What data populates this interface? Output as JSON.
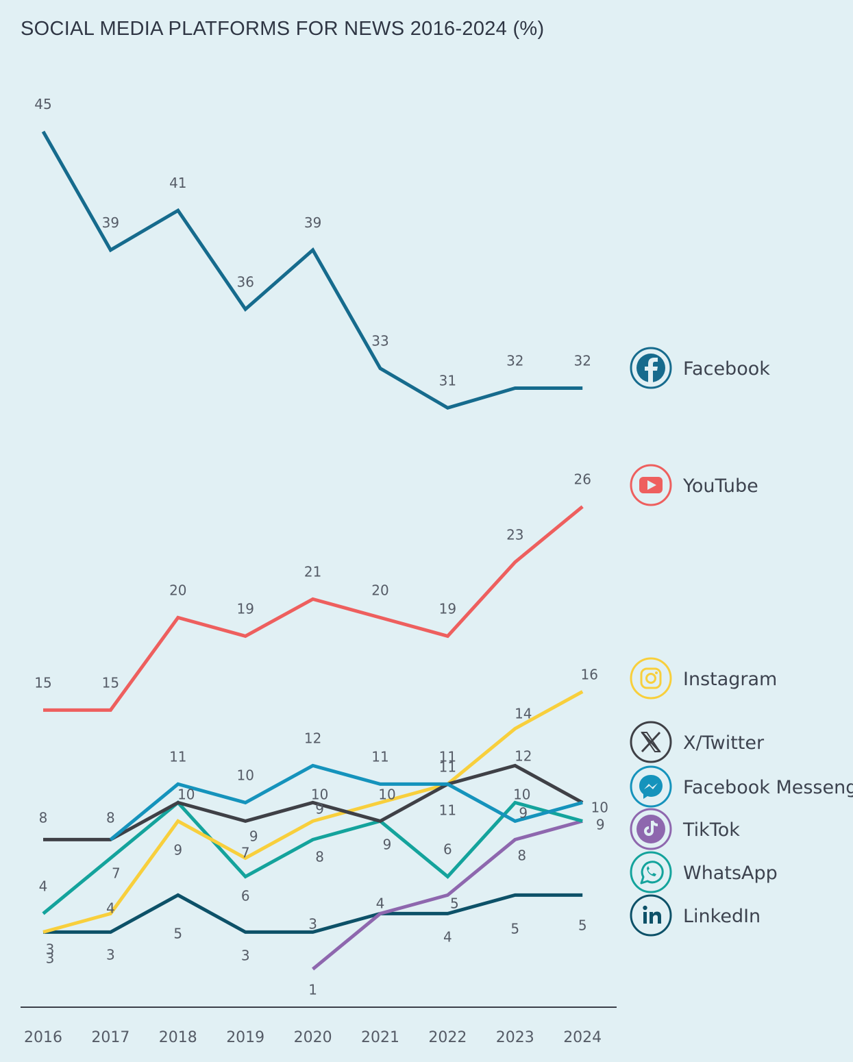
{
  "title": "SOCIAL MEDIA PLATFORMS FOR NEWS 2016-2024 (%)",
  "chart_data": {
    "type": "line",
    "title": "SOCIAL MEDIA PLATFORMS FOR NEWS 2016-2024 (%)",
    "x": [
      "2016",
      "2017",
      "2018",
      "2019",
      "2020",
      "2021",
      "2022",
      "2023",
      "2024"
    ],
    "series": [
      {
        "name": "Facebook",
        "color": "#166b8d",
        "icon": "facebook-icon",
        "values": [
          45,
          39,
          41,
          36,
          39,
          33,
          31,
          32,
          32
        ],
        "labels": [
          "45",
          "39",
          "41",
          "36",
          "39",
          "33",
          "31",
          "32",
          "32"
        ]
      },
      {
        "name": "YouTube",
        "color": "#ee5f5e",
        "icon": "youtube-icon",
        "values": [
          15,
          15,
          20,
          19,
          21,
          20,
          19,
          23,
          26
        ],
        "labels": [
          "15",
          "15",
          "20",
          "19",
          "21",
          "20",
          "19",
          "23",
          "26"
        ]
      },
      {
        "name": "Instagram",
        "color": "#f8cf3c",
        "icon": "instagram-icon",
        "values": [
          3,
          4,
          9,
          7,
          9,
          10,
          11,
          14,
          16
        ],
        "labels": [
          "3",
          "4",
          "9",
          "7",
          "9",
          "10",
          "11",
          "14",
          "16"
        ]
      },
      {
        "name": "X/Twitter",
        "color": "#3f4046",
        "icon": "x-icon",
        "values": [
          8,
          8,
          10,
          9,
          10,
          9,
          11,
          12,
          10
        ],
        "labels": [
          "8",
          "8",
          "10",
          "9",
          "10",
          "9",
          "11",
          "12",
          "10"
        ]
      },
      {
        "name": "Facebook Messenger",
        "color": "#1593bc",
        "icon": "messenger-icon",
        "values": [
          null,
          8,
          11,
          10,
          12,
          11,
          11,
          9,
          10
        ],
        "labels": [
          "",
          "",
          "11",
          "10",
          "12",
          "11",
          "11",
          "9",
          ""
        ]
      },
      {
        "name": "TikTok",
        "color": "#8e67ae",
        "icon": "tiktok-icon",
        "values": [
          null,
          null,
          null,
          null,
          1,
          4,
          5,
          8,
          9
        ],
        "labels": [
          "",
          "",
          "",
          "",
          "1",
          "",
          "5",
          "8",
          ""
        ]
      },
      {
        "name": "WhatsApp",
        "color": "#14a39c",
        "icon": "whatsapp-icon",
        "values": [
          4,
          7,
          10,
          6,
          8,
          9,
          6,
          10,
          9
        ],
        "labels": [
          "4",
          "7",
          "",
          "6",
          "8",
          "",
          "6",
          "10",
          "9"
        ]
      },
      {
        "name": "LinkedIn",
        "color": "#0d5168",
        "icon": "linkedin-icon",
        "values": [
          3,
          3,
          5,
          3,
          3,
          4,
          4,
          5,
          5
        ],
        "labels": [
          "3",
          "3",
          "5",
          "3",
          "3",
          "4",
          "4",
          "5",
          "5"
        ]
      }
    ],
    "grid": false,
    "legend": "right"
  }
}
